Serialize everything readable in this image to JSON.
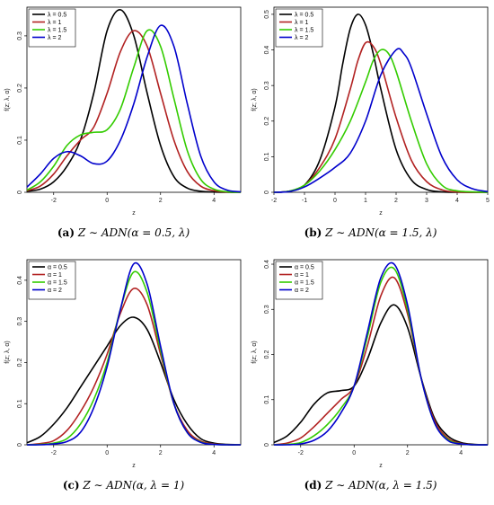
{
  "colors": {
    "black": "#000000",
    "red": "#B22222",
    "green": "#33CC00",
    "blue": "#0000CC"
  },
  "chart_data": [
    {
      "type": "line",
      "panel_label": "(a)",
      "caption": "Z ∼ ADN(α = 0.5, λ)",
      "xlabel": "z",
      "ylabel": "f(z; λ, α)",
      "xlim": [
        -3,
        5
      ],
      "ylim": [
        0,
        0.355
      ],
      "xticks": [
        -2,
        0,
        2,
        4
      ],
      "yticks": [
        0.0,
        0.1,
        0.2,
        0.3
      ],
      "legend_position": "top-left",
      "series": [
        {
          "name": "λ = 0.5",
          "color": "#000000",
          "x": [
            -3,
            -2.5,
            -2,
            -1.5,
            -1,
            -0.5,
            0,
            0.5,
            1,
            1.5,
            2,
            2.5,
            3,
            3.5,
            4,
            4.5,
            5
          ],
          "y": [
            0.002,
            0.006,
            0.02,
            0.05,
            0.1,
            0.19,
            0.31,
            0.35,
            0.3,
            0.19,
            0.09,
            0.03,
            0.008,
            0.002,
            0.0005,
            0,
            0
          ]
        },
        {
          "name": "λ = 1",
          "color": "#B22222",
          "x": [
            -3,
            -2.5,
            -2,
            -1.5,
            -1,
            -0.5,
            0,
            0.5,
            1,
            1.5,
            2,
            2.5,
            3,
            3.5,
            4,
            4.5,
            5
          ],
          "y": [
            0.003,
            0.012,
            0.035,
            0.07,
            0.1,
            0.125,
            0.19,
            0.27,
            0.31,
            0.28,
            0.19,
            0.1,
            0.04,
            0.012,
            0.003,
            0.0005,
            0
          ]
        },
        {
          "name": "λ = 1.5",
          "color": "#33CC00",
          "x": [
            -3,
            -2.5,
            -2,
            -1.5,
            -1,
            -0.5,
            0,
            0.5,
            1,
            1.5,
            2,
            2.5,
            3,
            3.5,
            4,
            4.5,
            5
          ],
          "y": [
            0.004,
            0.02,
            0.05,
            0.09,
            0.11,
            0.115,
            0.12,
            0.16,
            0.24,
            0.31,
            0.28,
            0.18,
            0.08,
            0.025,
            0.006,
            0.001,
            0
          ]
        },
        {
          "name": "λ = 2",
          "color": "#0000CC",
          "x": [
            -3,
            -2.5,
            -2,
            -1.5,
            -1,
            -0.5,
            0,
            0.5,
            1,
            1.5,
            2,
            2.5,
            3,
            3.5,
            4,
            4.5,
            5
          ],
          "y": [
            0.01,
            0.035,
            0.065,
            0.078,
            0.07,
            0.055,
            0.06,
            0.1,
            0.17,
            0.26,
            0.32,
            0.28,
            0.17,
            0.07,
            0.02,
            0.004,
            0.001
          ]
        }
      ]
    },
    {
      "type": "line",
      "panel_label": "(b)",
      "caption": "Z ∼ ADN(α = 1.5, λ)",
      "xlabel": "z",
      "ylabel": "f(z; λ, α)",
      "xlim": [
        -2,
        5
      ],
      "ylim": [
        0,
        0.52
      ],
      "xticks": [
        -2,
        -1,
        0,
        1,
        2,
        3,
        4,
        5
      ],
      "yticks": [
        0.0,
        0.1,
        0.2,
        0.3,
        0.4,
        0.5
      ],
      "legend_position": "top-left",
      "series": [
        {
          "name": "λ = 0.5",
          "color": "#000000",
          "x": [
            -2,
            -1.5,
            -1,
            -0.5,
            0,
            0.25,
            0.5,
            0.75,
            1,
            1.25,
            1.5,
            2,
            2.5,
            3,
            3.5,
            4,
            5
          ],
          "y": [
            0,
            0.003,
            0.02,
            0.09,
            0.24,
            0.36,
            0.46,
            0.5,
            0.47,
            0.39,
            0.29,
            0.12,
            0.035,
            0.008,
            0.001,
            0,
            0
          ]
        },
        {
          "name": "λ = 1",
          "color": "#B22222",
          "x": [
            -2,
            -1.5,
            -1,
            -0.5,
            0,
            0.5,
            0.75,
            1,
            1.25,
            1.5,
            2,
            2.5,
            3,
            3.5,
            4,
            5
          ],
          "y": [
            0,
            0.003,
            0.02,
            0.07,
            0.15,
            0.29,
            0.37,
            0.42,
            0.41,
            0.36,
            0.21,
            0.09,
            0.03,
            0.007,
            0.001,
            0
          ]
        },
        {
          "name": "λ = 1.5",
          "color": "#33CC00",
          "x": [
            -2,
            -1.5,
            -1,
            -0.5,
            0,
            0.5,
            1,
            1.25,
            1.5,
            1.75,
            2,
            2.5,
            3,
            3.5,
            4,
            5
          ],
          "y": [
            0,
            0.003,
            0.02,
            0.06,
            0.12,
            0.2,
            0.31,
            0.37,
            0.4,
            0.39,
            0.34,
            0.2,
            0.08,
            0.02,
            0.004,
            0
          ]
        },
        {
          "name": "λ = 2",
          "color": "#0000CC",
          "x": [
            -2,
            -1.5,
            -1,
            -0.5,
            0,
            0.5,
            1,
            1.5,
            2,
            2.25,
            2.5,
            3,
            3.5,
            4,
            4.5,
            5
          ],
          "y": [
            0,
            0.002,
            0.015,
            0.04,
            0.07,
            0.11,
            0.2,
            0.33,
            0.4,
            0.39,
            0.35,
            0.22,
            0.1,
            0.035,
            0.01,
            0.002
          ]
        }
      ]
    },
    {
      "type": "line",
      "panel_label": "(c)",
      "caption": "Z ∼ ADN(α, λ = 1)",
      "xlabel": "z",
      "ylabel": "f(z; λ, α)",
      "xlim": [
        -3,
        5
      ],
      "ylim": [
        0,
        0.45
      ],
      "xticks": [
        -2,
        0,
        2,
        4
      ],
      "yticks": [
        0.0,
        0.1,
        0.2,
        0.3,
        0.4
      ],
      "legend_position": "top-left",
      "series": [
        {
          "name": "α = 0.5",
          "color": "#000000",
          "x": [
            -3,
            -2.5,
            -2,
            -1.5,
            -1,
            -0.5,
            0,
            0.5,
            1,
            1.5,
            2,
            2.5,
            3,
            3.5,
            4,
            4.5,
            5
          ],
          "y": [
            0.005,
            0.02,
            0.05,
            0.09,
            0.14,
            0.19,
            0.24,
            0.29,
            0.31,
            0.28,
            0.2,
            0.11,
            0.05,
            0.015,
            0.004,
            0.001,
            0
          ]
        },
        {
          "name": "α = 1",
          "color": "#B22222",
          "x": [
            -3,
            -2.5,
            -2,
            -1.5,
            -1,
            -0.5,
            0,
            0.5,
            1,
            1.5,
            2,
            2.5,
            3,
            3.5,
            4,
            4.5,
            5
          ],
          "y": [
            0,
            0.003,
            0.01,
            0.035,
            0.08,
            0.14,
            0.22,
            0.32,
            0.38,
            0.34,
            0.22,
            0.1,
            0.035,
            0.009,
            0.002,
            0,
            0
          ]
        },
        {
          "name": "α = 1.5",
          "color": "#33CC00",
          "x": [
            -3,
            -2.5,
            -2,
            -1.5,
            -1,
            -0.5,
            0,
            0.5,
            1,
            1.5,
            2,
            2.5,
            3,
            3.5,
            4,
            4.5,
            5
          ],
          "y": [
            0,
            0.001,
            0.004,
            0.015,
            0.05,
            0.11,
            0.2,
            0.33,
            0.42,
            0.37,
            0.23,
            0.1,
            0.03,
            0.007,
            0.001,
            0,
            0
          ]
        },
        {
          "name": "α = 2",
          "color": "#0000CC",
          "x": [
            -3,
            -2.5,
            -2,
            -1.5,
            -1,
            -0.5,
            0,
            0.5,
            1,
            1.5,
            2,
            2.5,
            3,
            3.5,
            4,
            4.5,
            5
          ],
          "y": [
            0,
            0,
            0.002,
            0.008,
            0.03,
            0.09,
            0.19,
            0.33,
            0.44,
            0.39,
            0.24,
            0.1,
            0.03,
            0.006,
            0.001,
            0,
            0
          ]
        }
      ]
    },
    {
      "type": "line",
      "panel_label": "(d)",
      "caption": "Z ∼ ADN(α, λ = 1.5)",
      "xlabel": "z",
      "ylabel": "f(z; λ, α)",
      "xlim": [
        -3,
        5
      ],
      "ylim": [
        0,
        0.41
      ],
      "xticks": [
        -2,
        0,
        2,
        4
      ],
      "yticks": [
        0.0,
        0.1,
        0.2,
        0.3,
        0.4
      ],
      "legend_position": "top-left",
      "series": [
        {
          "name": "α = 0.5",
          "color": "#000000",
          "x": [
            -3,
            -2.5,
            -2,
            -1.5,
            -1,
            -0.5,
            0,
            0.5,
            1,
            1.5,
            2,
            2.5,
            3,
            3.5,
            4,
            4.5,
            5
          ],
          "y": [
            0.005,
            0.02,
            0.05,
            0.09,
            0.115,
            0.12,
            0.13,
            0.19,
            0.27,
            0.31,
            0.26,
            0.15,
            0.06,
            0.02,
            0.005,
            0.001,
            0
          ]
        },
        {
          "name": "α = 1",
          "color": "#B22222",
          "x": [
            -3,
            -2.5,
            -2,
            -1.5,
            -1,
            -0.5,
            0,
            0.5,
            1,
            1.5,
            2,
            2.5,
            3,
            3.5,
            4,
            4.5,
            5
          ],
          "y": [
            0,
            0.004,
            0.015,
            0.04,
            0.07,
            0.1,
            0.13,
            0.22,
            0.33,
            0.37,
            0.29,
            0.15,
            0.055,
            0.015,
            0.003,
            0,
            0
          ]
        },
        {
          "name": "α = 1.5",
          "color": "#33CC00",
          "x": [
            -3,
            -2.5,
            -2,
            -1.5,
            -1,
            -0.5,
            0,
            0.5,
            1,
            1.5,
            2,
            2.5,
            3,
            3.5,
            4,
            4.5,
            5
          ],
          "y": [
            0,
            0.001,
            0.005,
            0.02,
            0.045,
            0.08,
            0.13,
            0.24,
            0.36,
            0.39,
            0.3,
            0.15,
            0.05,
            0.012,
            0.002,
            0,
            0
          ]
        },
        {
          "name": "α = 2",
          "color": "#0000CC",
          "x": [
            -3,
            -2.5,
            -2,
            -1.5,
            -1,
            -0.5,
            0,
            0.5,
            1,
            1.5,
            2,
            2.5,
            3,
            3.5,
            4,
            4.5,
            5
          ],
          "y": [
            0,
            0,
            0.002,
            0.01,
            0.03,
            0.07,
            0.13,
            0.25,
            0.37,
            0.4,
            0.31,
            0.15,
            0.05,
            0.01,
            0.002,
            0,
            0
          ]
        }
      ]
    }
  ]
}
